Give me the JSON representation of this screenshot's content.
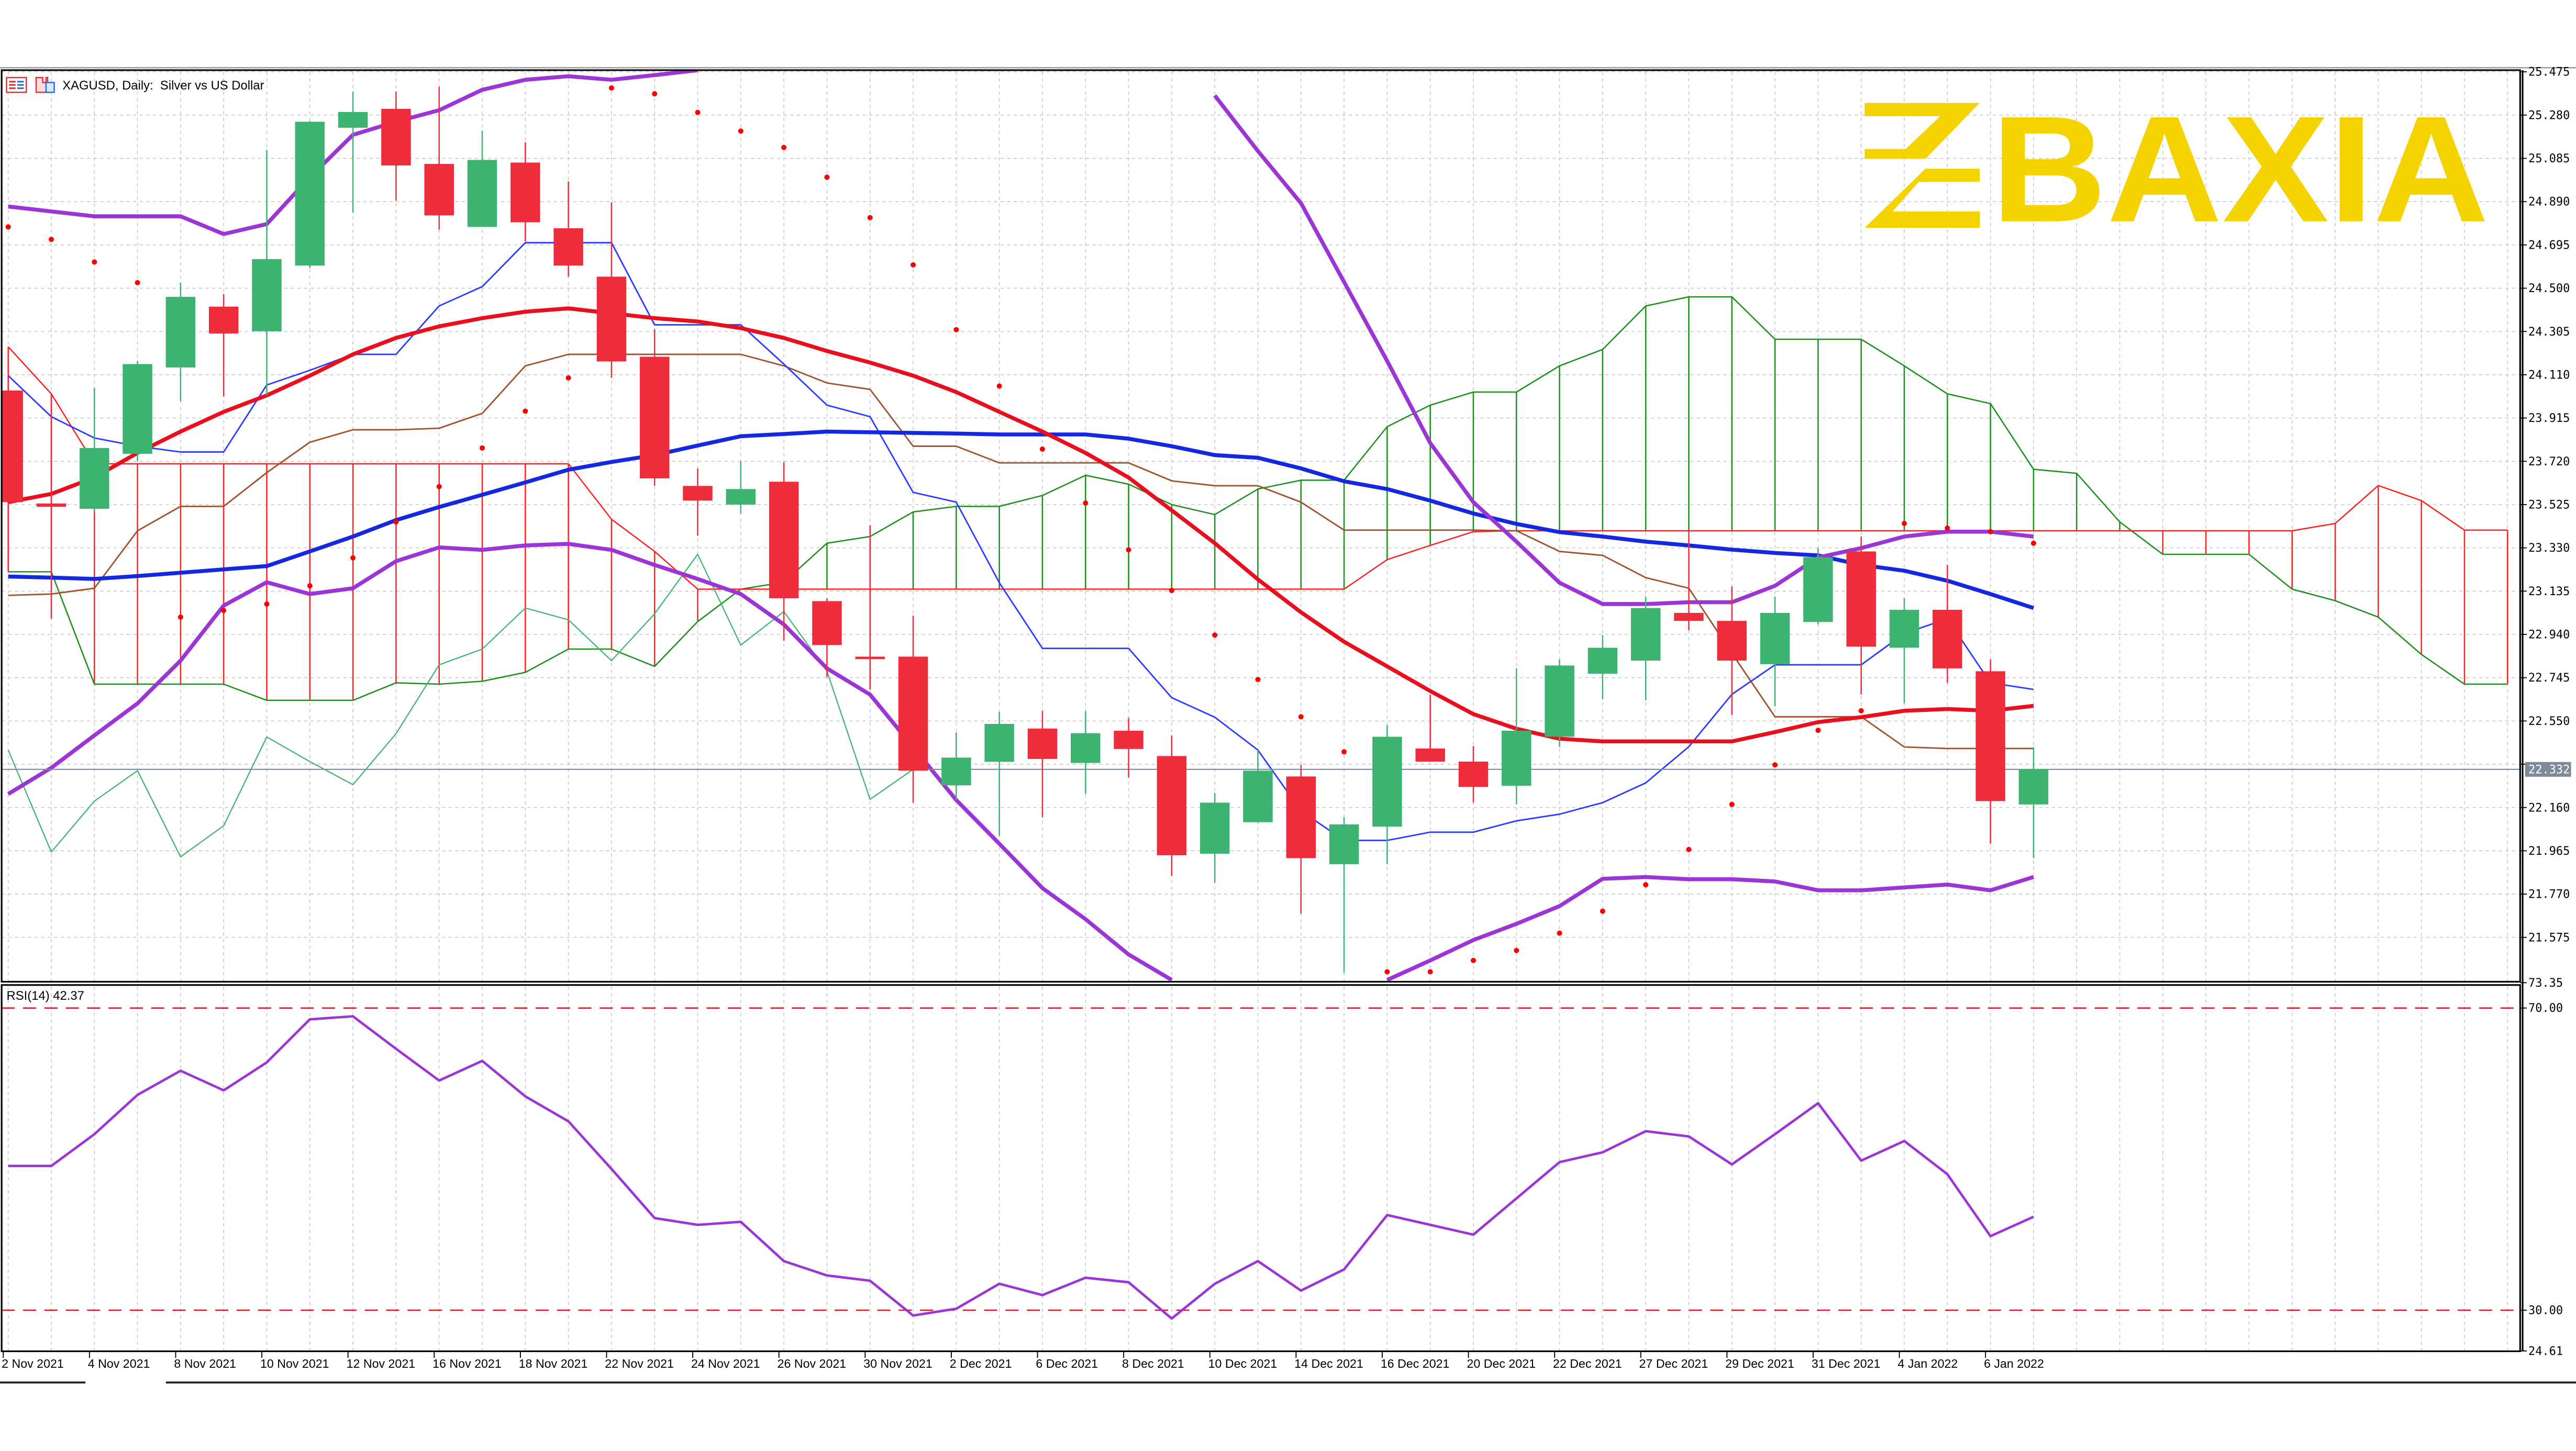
{
  "window": {
    "symbol_title": "XAGUSD, Daily:  Silver vs US Dollar",
    "icons": [
      "chart-list-icon",
      "chart-template-icon"
    ]
  },
  "brand": {
    "logo_text": "BAXIA",
    "color": "#F5D300"
  },
  "colors": {
    "bull": "#3cb371",
    "bear": "#ee2d3c",
    "red_ma": "#e8101e",
    "blue_ma": "#1428e0",
    "bollinger": "#9b35d6",
    "tenkan": "#2a3cff",
    "kijun": "#a0522d",
    "senkou_a": "#1a8f1a",
    "senkou_b": "#ff2020",
    "chikou": "#3cb371",
    "sar": "#ff0000",
    "rsi": "#9b35d6",
    "rsi_levels": "#e8101e",
    "grid": "#c8c8c8",
    "price_line": "#7d8a99"
  },
  "chart_data": [
    {
      "type": "candlestick",
      "title": "XAGUSD, Daily:  Silver vs US Dollar",
      "ylim": [
        21.37,
        25.475
      ],
      "y_tick_labels": [
        "25.475",
        "25.280",
        "25.085",
        "24.890",
        "24.695",
        "24.500",
        "24.305",
        "24.110",
        "23.915",
        "23.720",
        "23.525",
        "23.330",
        "23.135",
        "22.940",
        "22.745",
        "22.550",
        "22.355",
        "22.160",
        "21.965",
        "21.770",
        "21.575"
      ],
      "current_price": "22.332",
      "x_tick_labels": [
        "2 Nov 2021",
        "4 Nov 2021",
        "8 Nov 2021",
        "10 Nov 2021",
        "12 Nov 2021",
        "16 Nov 2021",
        "18 Nov 2021",
        "22 Nov 2021",
        "24 Nov 2021",
        "26 Nov 2021",
        "30 Nov 2021",
        "2 Dec 2021",
        "6 Dec 2021",
        "8 Dec 2021",
        "10 Dec 2021",
        "14 Dec 2021",
        "16 Dec 2021",
        "20 Dec 2021",
        "22 Dec 2021",
        "27 Dec 2021",
        "29 Dec 2021",
        "31 Dec 2021",
        "4 Jan 2022",
        "6 Jan 2022"
      ],
      "grid": true,
      "ohlc": [
        [
          24.039,
          24.091,
          23.484,
          23.536
        ],
        [
          23.53,
          24.012,
          23.011,
          23.515
        ],
        [
          23.506,
          24.051,
          23.491,
          23.78
        ],
        [
          23.754,
          24.172,
          23.721,
          24.158
        ],
        [
          24.143,
          24.525,
          23.991,
          24.461
        ],
        [
          24.417,
          24.473,
          24.012,
          24.296
        ],
        [
          24.306,
          25.123,
          24.017,
          24.631
        ],
        [
          24.602,
          25.253,
          24.591,
          25.25
        ],
        [
          25.223,
          25.386,
          24.841,
          25.294
        ],
        [
          25.308,
          25.386,
          24.894,
          25.053
        ],
        [
          25.06,
          25.408,
          24.764,
          24.828
        ],
        [
          24.776,
          25.21,
          24.776,
          25.078
        ],
        [
          25.066,
          25.157,
          24.71,
          24.797
        ],
        [
          24.77,
          24.981,
          24.552,
          24.602
        ],
        [
          24.552,
          24.887,
          24.096,
          24.17
        ],
        [
          24.191,
          24.315,
          23.61,
          23.643
        ],
        [
          23.609,
          23.688,
          23.385,
          23.543
        ],
        [
          23.525,
          23.721,
          23.485,
          23.595
        ],
        [
          23.628,
          23.717,
          22.911,
          23.103
        ],
        [
          23.09,
          23.103,
          22.748,
          22.892
        ],
        [
          22.84,
          23.432,
          22.692,
          22.835
        ],
        [
          22.84,
          23.025,
          22.182,
          22.326
        ],
        [
          22.26,
          22.498,
          22.194,
          22.385
        ],
        [
          22.366,
          22.59,
          22.032,
          22.537
        ],
        [
          22.516,
          22.595,
          22.116,
          22.379
        ],
        [
          22.361,
          22.595,
          22.221,
          22.495
        ],
        [
          22.506,
          22.564,
          22.295,
          22.424
        ],
        [
          22.392,
          22.485,
          21.852,
          21.945
        ],
        [
          21.952,
          22.226,
          21.821,
          22.182
        ],
        [
          22.094,
          22.419,
          22.09,
          22.326
        ],
        [
          22.3,
          22.352,
          21.682,
          21.932
        ],
        [
          21.905,
          22.116,
          21.418,
          22.084
        ],
        [
          22.074,
          22.532,
          21.905,
          22.479
        ],
        [
          22.426,
          22.669,
          22.367,
          22.367
        ],
        [
          22.367,
          22.437,
          22.182,
          22.253
        ],
        [
          22.258,
          22.787,
          22.174,
          22.506
        ],
        [
          22.479,
          22.827,
          22.433,
          22.8
        ],
        [
          22.763,
          22.937,
          22.648,
          22.88
        ],
        [
          22.822,
          23.111,
          22.643,
          23.059
        ],
        [
          23.037,
          23.406,
          22.959,
          23.001
        ],
        [
          23.001,
          23.156,
          22.577,
          22.822
        ],
        [
          22.806,
          23.111,
          22.616,
          23.037
        ],
        [
          22.996,
          23.329,
          22.985,
          23.288
        ],
        [
          23.314,
          23.381,
          22.669,
          22.885
        ],
        [
          22.88,
          23.103,
          22.63,
          23.051
        ],
        [
          23.051,
          23.253,
          22.722,
          22.787
        ],
        [
          22.774,
          22.827,
          21.997,
          22.189
        ],
        [
          22.174,
          22.432,
          21.932,
          22.332
        ]
      ],
      "indicators": {
        "red_ma": [
          23.536,
          23.573,
          23.647,
          23.758,
          23.854,
          23.943,
          24.017,
          24.106,
          24.202,
          24.276,
          24.328,
          24.365,
          24.394,
          24.409,
          24.387,
          24.365,
          24.35,
          24.32,
          24.276,
          24.217,
          24.165,
          24.106,
          24.032,
          23.943,
          23.854,
          23.758,
          23.647,
          23.499,
          23.351,
          23.188,
          23.04,
          22.907,
          22.796,
          22.685,
          22.581,
          22.515,
          22.47,
          22.458,
          22.458,
          22.458,
          22.458,
          22.5,
          22.545,
          22.567,
          22.596,
          22.604,
          22.596,
          22.618
        ],
        "blue_ma": [
          23.201,
          23.196,
          23.19,
          23.203,
          23.218,
          23.233,
          23.248,
          23.314,
          23.381,
          23.455,
          23.514,
          23.569,
          23.625,
          23.682,
          23.717,
          23.748,
          23.791,
          23.833,
          23.843,
          23.854,
          23.851,
          23.848,
          23.845,
          23.841,
          23.841,
          23.841,
          23.822,
          23.788,
          23.748,
          23.736,
          23.688,
          23.63,
          23.595,
          23.543,
          23.485,
          23.438,
          23.401,
          23.381,
          23.358,
          23.341,
          23.322,
          23.307,
          23.296,
          23.253,
          23.227,
          23.182,
          23.122,
          23.059
        ],
        "bollinger_upper": [
          24.868,
          24.846,
          24.824,
          24.824,
          24.824,
          24.744,
          24.789,
          25.0,
          25.191,
          25.25,
          25.302,
          25.394,
          25.439,
          25.455,
          25.439,
          25.46,
          25.482,
          null,
          null,
          null,
          null,
          null,
          null,
          null,
          null,
          null,
          null,
          null,
          25.368,
          25.118,
          24.883,
          24.528,
          24.172,
          23.802,
          23.536,
          23.358,
          23.173,
          23.077,
          23.077,
          23.085,
          23.085,
          23.159,
          23.287,
          23.329,
          23.381,
          23.403,
          23.403,
          23.381
        ],
        "bollinger_lower": [
          22.221,
          22.339,
          22.485,
          22.629,
          22.822,
          23.07,
          23.175,
          23.122,
          23.148,
          23.27,
          23.332,
          23.321,
          23.341,
          23.348,
          23.321,
          23.253,
          23.19,
          23.122,
          22.985,
          22.787,
          22.669,
          22.432,
          22.194,
          21.997,
          21.797,
          21.657,
          21.498,
          21.383,
          null,
          null,
          null,
          null,
          21.383,
          21.471,
          21.563,
          21.636,
          21.716,
          21.839,
          21.847,
          21.837,
          21.837,
          21.827,
          21.787,
          21.787,
          21.8,
          21.813,
          21.787,
          21.847
        ],
        "tenkan": [
          24.106,
          23.921,
          23.825,
          23.788,
          23.762,
          23.762,
          24.064,
          24.13,
          24.202,
          24.202,
          24.42,
          24.507,
          24.705,
          24.705,
          24.705,
          24.335,
          24.335,
          24.335,
          24.158,
          23.973,
          23.921,
          23.58,
          23.536,
          23.173,
          22.877,
          22.877,
          22.877,
          22.655,
          22.567,
          22.419,
          22.145,
          22.012,
          22.012,
          22.049,
          22.049,
          22.1,
          22.13,
          22.182,
          22.271,
          22.434,
          22.67,
          22.803,
          22.803,
          22.803,
          22.944,
          23.011,
          22.722,
          22.692
        ],
        "kijun": [
          23.116,
          23.122,
          23.148,
          23.407,
          23.517,
          23.517,
          23.669,
          23.806,
          23.862,
          23.862,
          23.869,
          23.936,
          24.15,
          24.202,
          24.202,
          24.202,
          24.202,
          24.202,
          24.15,
          24.073,
          24.044,
          23.788,
          23.788,
          23.713,
          23.713,
          23.713,
          23.713,
          23.632,
          23.61,
          23.61,
          23.536,
          23.41,
          23.41,
          23.41,
          23.41,
          23.407,
          23.314,
          23.296,
          23.196,
          23.148,
          22.855,
          22.569,
          22.569,
          22.569,
          22.433,
          22.426,
          22.426,
          22.426
        ],
        "senkou_a": [
          23.222,
          23.222,
          22.716,
          22.716,
          22.716,
          22.716,
          22.643,
          22.643,
          22.643,
          22.722,
          22.716,
          22.729,
          22.769,
          22.874,
          22.874,
          22.796,
          22.998,
          23.144,
          23.175,
          23.351,
          23.381,
          23.492,
          23.517,
          23.517,
          23.566,
          23.657,
          23.617,
          23.525,
          23.48,
          23.595,
          23.635,
          23.635,
          23.876,
          23.973,
          24.032,
          24.032,
          24.15,
          24.224,
          24.42,
          24.461,
          24.461,
          24.27,
          24.27,
          24.27,
          24.15,
          24.024,
          23.98,
          23.684,
          23.666,
          23.447,
          23.301,
          23.301,
          23.301,
          23.144,
          23.092,
          23.018,
          22.85,
          22.716,
          22.716
        ],
        "senkou_b": [
          24.236,
          24.024,
          23.709,
          23.709,
          23.709,
          23.709,
          23.709,
          23.709,
          23.709,
          23.709,
          23.709,
          23.709,
          23.709,
          23.709,
          23.459,
          23.314,
          23.144,
          23.144,
          23.144,
          23.144,
          23.144,
          23.144,
          23.144,
          23.144,
          23.144,
          23.144,
          23.144,
          23.144,
          23.144,
          23.144,
          23.144,
          23.144,
          23.277,
          23.341,
          23.403,
          23.407,
          23.407,
          23.407,
          23.407,
          23.407,
          23.407,
          23.407,
          23.407,
          23.407,
          23.407,
          23.407,
          23.407,
          23.407,
          23.407,
          23.407,
          23.407,
          23.407,
          23.407,
          23.407,
          23.44,
          23.611,
          23.543,
          23.41,
          23.41
        ],
        "chikou": [
          22.419,
          21.96,
          22.189,
          22.326,
          21.938,
          22.078,
          22.478,
          22.367,
          22.263,
          22.493,
          22.803,
          22.874,
          23.059,
          23.006,
          22.822,
          23.033,
          23.301,
          22.892,
          23.043,
          22.774,
          22.197,
          22.332
        ],
        "parabolic_sar": [
          24.776,
          24.72,
          24.618,
          24.525,
          23.018,
          23.048,
          23.077,
          23.159,
          23.285,
          23.447,
          23.606,
          23.78,
          23.946,
          24.096,
          25.402,
          25.376,
          25.292,
          25.208,
          25.134,
          25.0,
          24.818,
          24.605,
          24.313,
          24.059,
          23.775,
          23.532,
          23.321,
          23.138,
          22.937,
          22.737,
          22.569,
          22.411,
          21.42,
          21.42,
          21.471,
          21.516,
          21.594,
          21.693,
          21.812,
          21.971,
          22.174,
          22.352,
          22.508,
          22.596,
          23.44,
          23.419,
          23.403,
          23.351
        ]
      }
    },
    {
      "type": "line",
      "label": "RSI(14) 42.37",
      "ylim": [
        24.61,
        73.35
      ],
      "y_tick_labels": [
        "73.35",
        "70.00",
        "30.00",
        "24.61"
      ],
      "levels": [
        70,
        30
      ],
      "values": [
        49.1,
        49.1,
        53.3,
        58.5,
        61.7,
        59.1,
        62.8,
        68.5,
        68.9,
        64.6,
        60.4,
        63.0,
        58.3,
        55.0,
        48.7,
        42.2,
        41.3,
        41.7,
        36.5,
        34.6,
        33.9,
        29.3,
        30.2,
        33.5,
        32.0,
        34.3,
        33.7,
        28.9,
        33.5,
        36.5,
        32.6,
        35.4,
        42.6,
        41.3,
        40.0,
        44.8,
        49.6,
        50.9,
        53.7,
        53.0,
        49.3,
        53.3,
        57.4,
        49.8,
        52.4,
        48.0,
        39.8,
        42.37
      ]
    }
  ]
}
